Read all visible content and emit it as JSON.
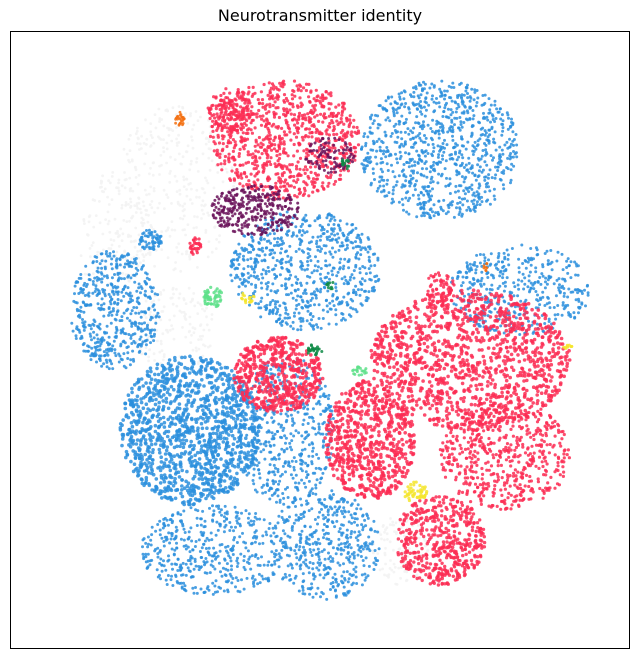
{
  "chart_data": {
    "type": "scatter",
    "title": "Neurotransmitter identity",
    "xlabel": "",
    "ylabel": "",
    "axis_ticks": false,
    "grid": false,
    "legend": "none",
    "colors": {
      "blue": "#2b8fdd",
      "red": "#fc2d53",
      "purple": "#6a1259",
      "orange": "#f36f0f",
      "light_green": "#5ee08a",
      "dark_green": "#0e8a45",
      "yellow": "#f5e52e",
      "light_gray": "#f2f2f2"
    },
    "point_size": "small",
    "note_regions": [
      {
        "color": "blue",
        "region": "top-right cluster"
      },
      {
        "color": "blue",
        "region": "center"
      },
      {
        "color": "blue",
        "region": "left"
      },
      {
        "color": "blue",
        "region": "bottom-left large"
      },
      {
        "color": "blue",
        "region": "bottom"
      },
      {
        "color": "red",
        "region": "top center"
      },
      {
        "color": "red",
        "region": "center-right"
      },
      {
        "color": "red",
        "region": "center"
      },
      {
        "color": "red",
        "region": "bottom-right"
      },
      {
        "color": "purple",
        "region": "upper-left center"
      },
      {
        "color": "light_gray",
        "region": "upper-left"
      },
      {
        "color": "orange",
        "region": "top-left"
      },
      {
        "color": "light_green",
        "region": "left center"
      },
      {
        "color": "yellow",
        "region": "bottom center-right"
      }
    ]
  }
}
